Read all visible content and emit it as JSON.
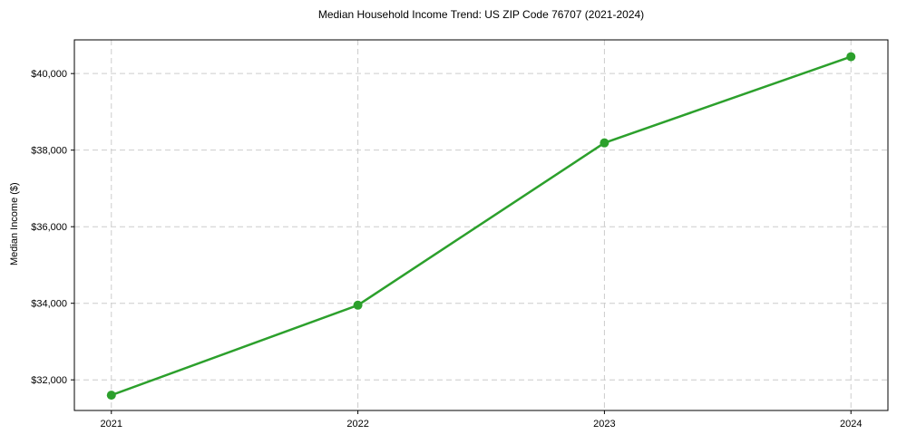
{
  "chart_data": {
    "type": "line",
    "title": "Median Household Income Trend: US ZIP Code 76707 (2021-2024)",
    "xlabel": "",
    "ylabel": "Median Income ($)",
    "x": [
      2021,
      2022,
      2023,
      2024
    ],
    "x_tick_labels": [
      "2021",
      "2022",
      "2023",
      "2024"
    ],
    "values": [
      31600,
      33950,
      38190,
      40440
    ],
    "y_ticks": [
      32000,
      34000,
      36000,
      38000,
      40000
    ],
    "y_tick_labels": [
      "$32,000",
      "$34,000",
      "$36,000",
      "$38,000",
      "$40,000"
    ],
    "xlim": [
      2020.85,
      2024.15
    ],
    "ylim": [
      31200,
      40880
    ],
    "grid": true,
    "grid_style": "dashed",
    "legend": "none",
    "line_color": "#2ca02c",
    "line_width": 2.5,
    "marker": "circle",
    "marker_size": 10,
    "grid_color": "#cccccc",
    "spine_color": "#000000",
    "text_color": "#000000",
    "background_color": "#ffffff"
  }
}
